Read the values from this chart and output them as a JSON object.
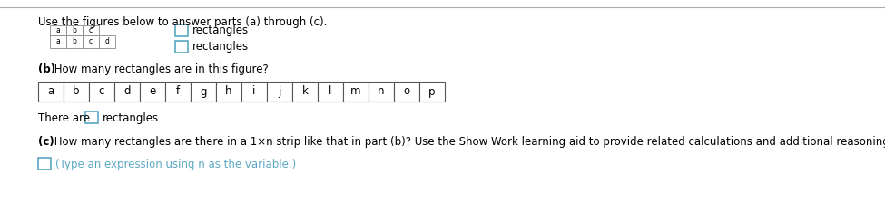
{
  "title_text": "Use the figures below to answer parts (a) through (c).",
  "bg_color": "#ffffff",
  "part_a_labels_row1": [
    "a",
    "b",
    "c"
  ],
  "part_a_labels_row2": [
    "a",
    "b",
    "c",
    "d"
  ],
  "part_b_bold": "(b)",
  "part_b_text": " How many rectangles are in this figure?",
  "part_b_cells": [
    "a",
    "b",
    "c",
    "d",
    "e",
    "f",
    "g",
    "h",
    "i",
    "j",
    "k",
    "l",
    "m",
    "n",
    "o",
    "p"
  ],
  "there_are_text": "There are",
  "rectangles_text": "rectangles.",
  "part_c_bold": "(c)",
  "part_c_text": " How many rectangles are there in a 1×n strip like that in part (b)? Use the Show Work learning aid to provide related calculations and additional reasoning to support your answer.",
  "type_expr_text": "(Type an expression using n as the variable.)",
  "cyan_color": "#5BA8C4",
  "text_color": "#000000",
  "rectangles_label1": "rectangles",
  "rectangles_label2": "rectangles",
  "divider_color": "#aaaaaa",
  "cell_edge_color": "#555555",
  "part_a_edge_color": "#888888"
}
